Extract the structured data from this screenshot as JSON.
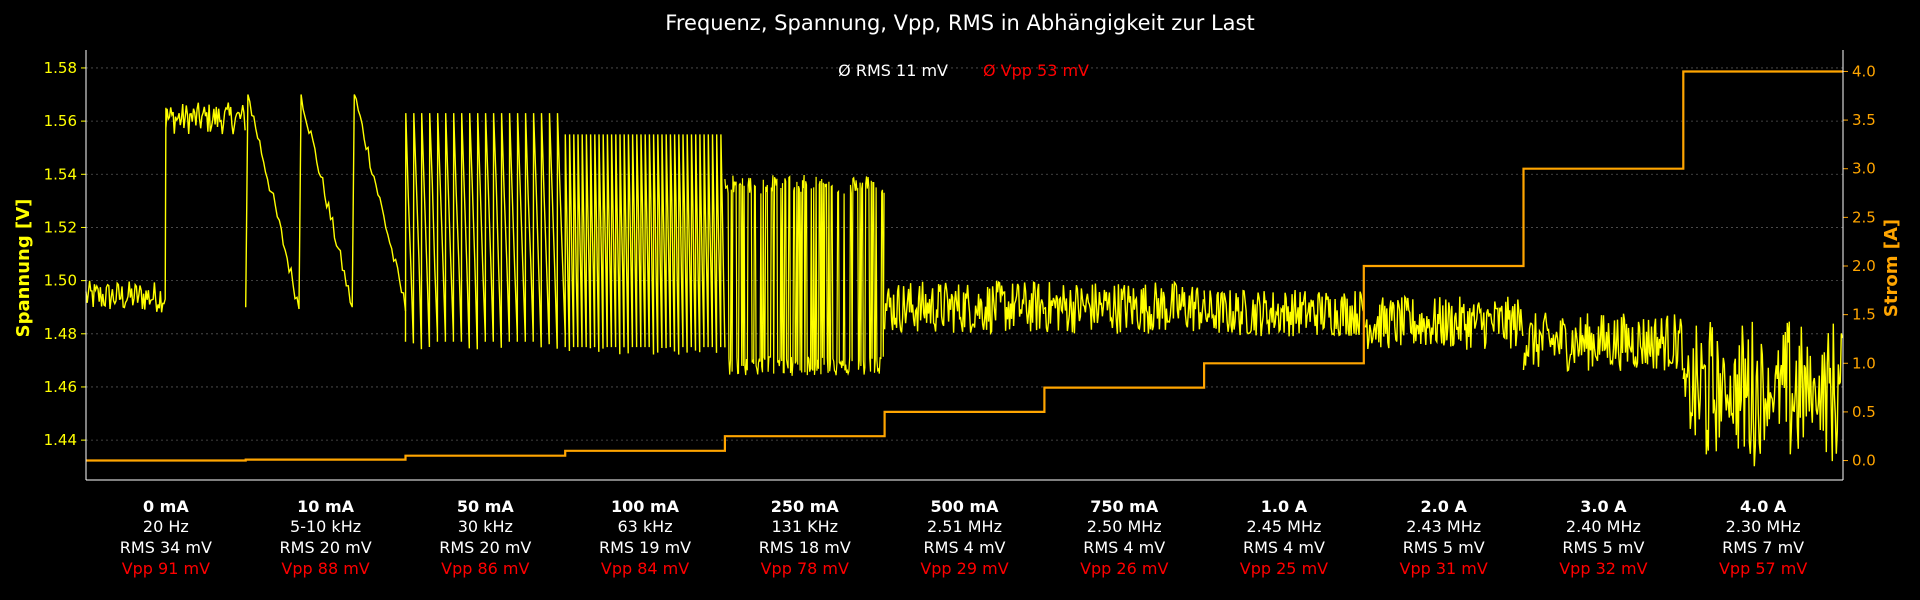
{
  "chart_data": {
    "type": "line",
    "title": "Frequenz, Spannung, Vpp, RMS in Abhängigkeit zur Last",
    "ylabel_left": "Spannung [V]",
    "ylabel_right": "Strom [A]",
    "ylim_left": [
      1.425,
      1.586
    ],
    "ylim_right": [
      -0.2,
      4.2
    ],
    "yticks_left": [
      "1.44",
      "1.46",
      "1.48",
      "1.50",
      "1.52",
      "1.54",
      "1.56",
      "1.58"
    ],
    "yticks_right": [
      "0.0",
      "0.5",
      "1.0",
      "1.5",
      "2.0",
      "2.5",
      "3.0",
      "3.5",
      "4.0"
    ],
    "grid": true,
    "legend": {
      "rms": "Ø RMS 11 mV",
      "vpp": "Ø Vpp 53 mV"
    },
    "colors": {
      "voltage": "#ffff00",
      "current": "#ffa500",
      "text": "#ffffff",
      "vpp": "#ff0000",
      "background": "#000000",
      "grid": "#555555"
    },
    "segments": [
      {
        "load": "0 mA",
        "freq": "20 Hz",
        "rms": "RMS 34 mV",
        "vpp": "Vpp 91 mV",
        "current_A": 0.0,
        "style": "flat",
        "v_center": 1.494,
        "v_spread": 0.006
      },
      {
        "load": "10 mA",
        "freq": "5-10 kHz",
        "rms": "RMS 20 mV",
        "vpp": "Vpp 88 mV",
        "current_A": 0.01,
        "style": "sawslow",
        "v_center": 1.53,
        "v_spread": 0.04
      },
      {
        "load": "50 mA",
        "freq": "30 kHz",
        "rms": "RMS 20 mV",
        "vpp": "Vpp 86 mV",
        "current_A": 0.05,
        "style": "sawfast",
        "v_center": 1.52,
        "v_spread": 0.043
      },
      {
        "load": "100 mA",
        "freq": "63 kHz",
        "rms": "RMS 19 mV",
        "vpp": "Vpp 84 mV",
        "current_A": 0.1,
        "style": "sawdense",
        "v_center": 1.515,
        "v_spread": 0.04
      },
      {
        "load": "250 mA",
        "freq": "131 KHz",
        "rms": "RMS 18 mV",
        "vpp": "Vpp 78 mV",
        "current_A": 0.25,
        "style": "block",
        "v_center": 1.502,
        "v_spread": 0.036
      },
      {
        "load": "500 mA",
        "freq": "2.51 MHz",
        "rms": "RMS 4 mV",
        "vpp": "Vpp 29 mV",
        "current_A": 0.5,
        "style": "noise",
        "v_center": 1.49,
        "v_spread": 0.01
      },
      {
        "load": "750 mA",
        "freq": "2.50 MHz",
        "rms": "RMS 4 mV",
        "vpp": "Vpp 26 mV",
        "current_A": 0.75,
        "style": "noise",
        "v_center": 1.49,
        "v_spread": 0.01
      },
      {
        "load": "1.0 A",
        "freq": "2.45 MHz",
        "rms": "RMS 4 mV",
        "vpp": "Vpp 25 mV",
        "current_A": 1.0,
        "style": "noise",
        "v_center": 1.488,
        "v_spread": 0.009
      },
      {
        "load": "2.0 A",
        "freq": "2.43 MHz",
        "rms": "RMS 5 mV",
        "vpp": "Vpp 31 mV",
        "current_A": 2.0,
        "style": "noise",
        "v_center": 1.484,
        "v_spread": 0.01
      },
      {
        "load": "3.0 A",
        "freq": "2.40 MHz",
        "rms": "RMS 5 mV",
        "vpp": "Vpp 32 mV",
        "current_A": 3.0,
        "style": "noise",
        "v_center": 1.477,
        "v_spread": 0.011
      },
      {
        "load": "4.0 A",
        "freq": "2.30 MHz",
        "rms": "RMS 7 mV",
        "vpp": "Vpp 57 mV",
        "current_A": 4.0,
        "style": "bursty",
        "v_center": 1.458,
        "v_spread": 0.022
      }
    ]
  }
}
